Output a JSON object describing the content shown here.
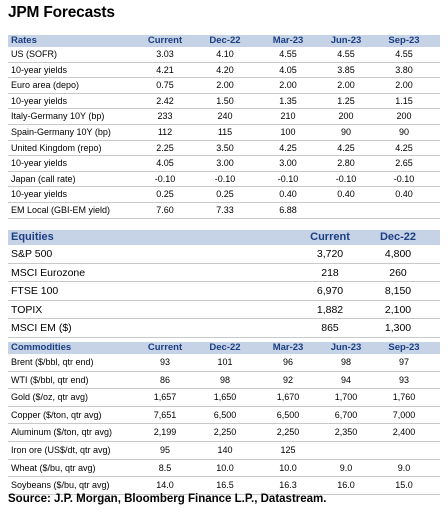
{
  "title": "JPM Forecasts",
  "rates": {
    "headers": [
      "Rates",
      "Current",
      "Dec-22",
      "Mar-23",
      "Jun-23",
      "Sep-23"
    ],
    "rows": [
      [
        "US (SOFR)",
        "3.03",
        "4.10",
        "4.55",
        "4.55",
        "4.55"
      ],
      [
        "10-year yields",
        "4.21",
        "4.20",
        "4.05",
        "3.85",
        "3.80"
      ],
      [
        "Euro area (depo)",
        "0.75",
        "2.00",
        "2.00",
        "2.00",
        "2.00"
      ],
      [
        "10-year yields",
        "2.42",
        "1.50",
        "1.35",
        "1.25",
        "1.15"
      ],
      [
        "Italy-Germany 10Y (bp)",
        "233",
        "240",
        "210",
        "200",
        "200"
      ],
      [
        "Spain-Germany 10Y (bp)",
        "112",
        "115",
        "100",
        "90",
        "90"
      ],
      [
        "United Kingdom (repo)",
        "2.25",
        "3.50",
        "4.25",
        "4.25",
        "4.25"
      ],
      [
        "10-year yields",
        "4.05",
        "3.00",
        "3.00",
        "2.80",
        "2.65"
      ],
      [
        "Japan (call rate)",
        "-0.10",
        "-0.10",
        "-0.10",
        "-0.10",
        "-0.10"
      ],
      [
        "10-year yields",
        "0.25",
        "0.25",
        "0.40",
        "0.40",
        "0.40"
      ],
      [
        "EM Local (GBI-EM yield)",
        "7.60",
        "7.33",
        "6.88",
        "",
        ""
      ]
    ]
  },
  "equities": {
    "headers": [
      "Equities",
      "Current",
      "Dec-22"
    ],
    "rows": [
      [
        "S&P 500",
        "3,720",
        "4,800"
      ],
      [
        "MSCI Eurozone",
        "218",
        "260"
      ],
      [
        "FTSE 100",
        "6,970",
        "8,150"
      ],
      [
        "TOPIX",
        "1,882",
        "2,100"
      ],
      [
        "MSCI EM ($)",
        "865",
        "1,300"
      ]
    ]
  },
  "commodities": {
    "headers": [
      "Commodities",
      "Current",
      "Dec-22",
      "Mar-23",
      "Jun-23",
      "Sep-23"
    ],
    "rows": [
      [
        "Brent ($/bbl, qtr end)",
        "93",
        "101",
        "96",
        "98",
        "97"
      ],
      [
        "WTI ($/bbl, qtr end)",
        "86",
        "98",
        "92",
        "94",
        "93"
      ],
      [
        "Gold ($/oz, qtr avg)",
        "1,657",
        "1,650",
        "1,670",
        "1,700",
        "1,760"
      ],
      [
        "Copper ($/ton, qtr avg)",
        "7,651",
        "6,500",
        "6,500",
        "6,700",
        "7,000"
      ],
      [
        "Aluminum ($/ton, qtr avg)",
        "2,199",
        "2,250",
        "2,250",
        "2,350",
        "2,400"
      ],
      [
        "Iron ore (US$/dt, qtr avg)",
        "95",
        "140",
        "125",
        "",
        ""
      ],
      [
        "Wheat ($/bu, qtr avg)",
        "8.5",
        "10.0",
        "10.0",
        "9.0",
        "9.0"
      ],
      [
        "Soybeans ($/bu, qtr avg)",
        "14.0",
        "16.5",
        "16.3",
        "16.0",
        "15.0"
      ]
    ]
  },
  "source": "Source: J.P. Morgan, Bloomberg Finance L.P., Datastream."
}
